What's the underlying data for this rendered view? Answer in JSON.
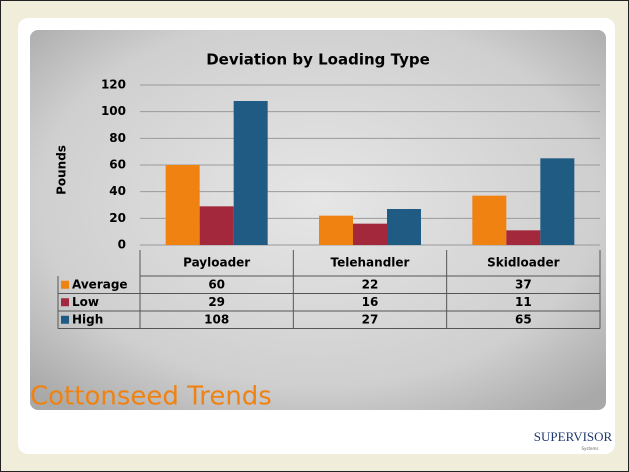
{
  "chart_data": {
    "type": "bar",
    "title": "Deviation by Loading Type",
    "y_label": "Pounds",
    "categories": [
      "Payloader",
      "Telehandler",
      "Skidloader"
    ],
    "series": [
      {
        "name": "Average",
        "color": "#f08212",
        "values": [
          60,
          22,
          37
        ]
      },
      {
        "name": "Low",
        "color": "#a3283b",
        "values": [
          29,
          16,
          11
        ]
      },
      {
        "name": "High",
        "color": "#1f5b82",
        "values": [
          108,
          27,
          65
        ]
      }
    ],
    "ylim": [
      0,
      120
    ],
    "yticks": [
      0,
      20,
      40,
      60,
      80,
      100,
      120
    ],
    "grid": true
  },
  "slide_title": "Cottonseed Trends",
  "logo": {
    "name": "SUPERVISOR",
    "tagline": "Systems"
  }
}
